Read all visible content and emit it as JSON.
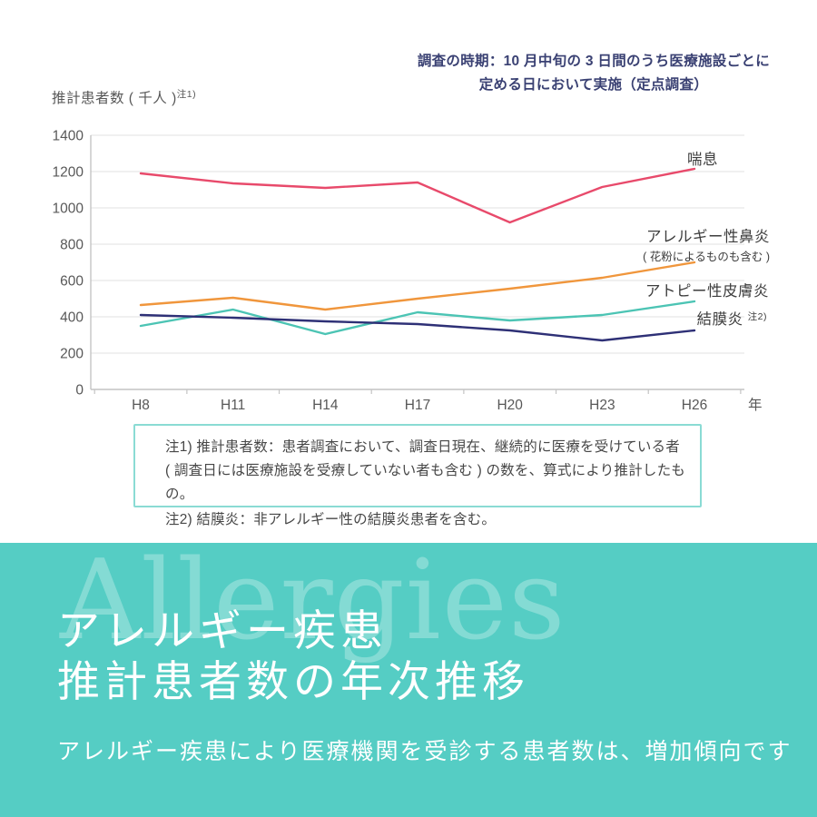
{
  "header": {
    "survey_note_line1": "調査の時期：10 月中旬の 3 日間のうち医療施設ごとに",
    "survey_note_line2": "定める日において実施（定点調査）",
    "y_axis_title": "推計患者数 ( 千人 )",
    "y_axis_title_sup": "注1)"
  },
  "chart_data": {
    "type": "line",
    "title": "アレルギー疾患 推計患者数の年次推移",
    "categories": [
      "H8",
      "H11",
      "H14",
      "H17",
      "H20",
      "H23",
      "H26"
    ],
    "x_axis_suffix": "年",
    "ylabel": "推計患者数 ( 千人 )",
    "ylim": [
      0,
      1400
    ],
    "ytick_step": 200,
    "grid": true,
    "legend_position": "right-of-lines",
    "series": [
      {
        "name": "喘息",
        "color": "#e84a6b",
        "values": [
          1190,
          1135,
          1110,
          1140,
          920,
          1115,
          1215
        ]
      },
      {
        "name": "アレルギー性鼻炎",
        "sub_label": "( 花粉によるものも含む )",
        "color": "#f0963c",
        "values": [
          465,
          505,
          440,
          500,
          555,
          615,
          700
        ]
      },
      {
        "name": "アトピー性皮膚炎",
        "color": "#4cc4b4",
        "values": [
          350,
          440,
          305,
          425,
          380,
          410,
          485
        ]
      },
      {
        "name": "結膜炎",
        "sup_label": "注2)",
        "color": "#2e3076",
        "values": [
          410,
          395,
          375,
          360,
          325,
          270,
          325
        ]
      }
    ]
  },
  "notes": {
    "line1": "注1) 推計患者数：患者調査において、調査日現在、継続的に医療を受けている者",
    "line2": "( 調査日には医療施設を受療していない者も含む ) の数を、算式により推計したもの。",
    "line3": "注2) 結膜炎：非アレルギー性の結膜炎患者を含む。"
  },
  "banner": {
    "watermark": "Allergies",
    "title_line1": "アレルギー疾患",
    "title_line2": "推計患者数の年次推移",
    "subtitle": "アレルギー疾患により医療機関を受診する患者数は、増加傾向です",
    "background_color": "#55cdc4",
    "text_color": "#ffffff"
  }
}
